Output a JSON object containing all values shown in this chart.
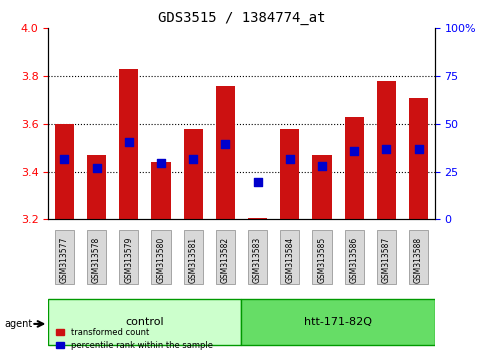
{
  "title": "GDS3515 / 1384774_at",
  "samples": [
    "GSM313577",
    "GSM313578",
    "GSM313579",
    "GSM313580",
    "GSM313581",
    "GSM313582",
    "GSM313583",
    "GSM313584",
    "GSM313585",
    "GSM313586",
    "GSM313587",
    "GSM313588"
  ],
  "bar_top": [
    3.6,
    3.47,
    3.83,
    3.44,
    3.58,
    3.76,
    3.205,
    3.58,
    3.47,
    3.63,
    3.78,
    3.71
  ],
  "blue_dot": [
    3.455,
    3.415,
    3.525,
    3.435,
    3.455,
    3.515,
    3.355,
    3.455,
    3.425,
    3.485,
    3.495,
    3.495
  ],
  "bar_base": 3.2,
  "ylim_left": [
    3.2,
    4.0
  ],
  "ylim_right": [
    0,
    100
  ],
  "yticks_left": [
    3.2,
    3.4,
    3.6,
    3.8,
    4.0
  ],
  "yticks_right": [
    0,
    25,
    50,
    75,
    100
  ],
  "ytick_labels_right": [
    "0",
    "25",
    "50",
    "75",
    "100%"
  ],
  "bar_color": "#cc1111",
  "dot_color": "#0000cc",
  "control_group": [
    "GSM313577",
    "GSM313578",
    "GSM313579",
    "GSM313580",
    "GSM313581",
    "GSM313582"
  ],
  "treatment_group": [
    "GSM313583",
    "GSM313584",
    "GSM313585",
    "GSM313586",
    "GSM313587",
    "GSM313588"
  ],
  "control_label": "control",
  "treatment_label": "htt-171-82Q",
  "agent_label": "agent",
  "legend_bar_label": "transformed count",
  "legend_dot_label": "percentile rank within the sample",
  "control_color": "#ccffcc",
  "treatment_color": "#66dd66",
  "bg_color": "#ffffff",
  "grid_color": "#000000",
  "bar_width": 0.6
}
